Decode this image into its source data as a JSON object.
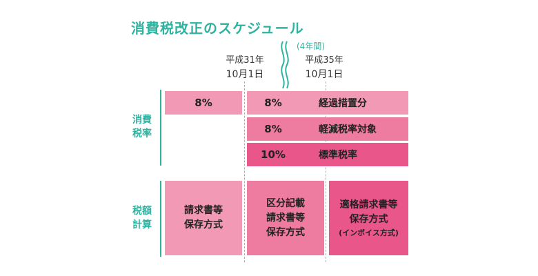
{
  "title": "消費税改正のスケジュール",
  "dates": [
    {
      "era": "平成31年",
      "day": "10月1日"
    },
    {
      "era": "平成35年",
      "day": "10月1日"
    }
  ],
  "period_note": "(4年間)",
  "rows": {
    "tax_rate_label": [
      "消費",
      "税率"
    ],
    "tax_calc_label": [
      "税額",
      "計算"
    ]
  },
  "rate_bars": [
    {
      "pct": "8%",
      "label": "",
      "color": "#f29ab5"
    },
    {
      "pct": "8%",
      "label": "経過措置分",
      "color": "#f29ab5"
    },
    {
      "pct": "8%",
      "label": "軽減税率対象",
      "color": "#ee7ca0"
    },
    {
      "pct": "10%",
      "label": "標準税率",
      "color": "#e9568a"
    }
  ],
  "calc_boxes": [
    {
      "lines": [
        "請求書等",
        "保存方式"
      ],
      "note": "",
      "color": "#f29ab5"
    },
    {
      "lines": [
        "区分記載",
        "請求書等",
        "保存方式"
      ],
      "note": "",
      "color": "#ee7ca0"
    },
    {
      "lines": [
        "適格請求書等",
        "保存方式"
      ],
      "note": "(インボイス方式)",
      "color": "#e9568a"
    }
  ],
  "colors": {
    "accent": "#2eb3a0",
    "pink_light": "#f29ab5",
    "pink_mid": "#ee7ca0",
    "pink_dark": "#e9568a"
  }
}
